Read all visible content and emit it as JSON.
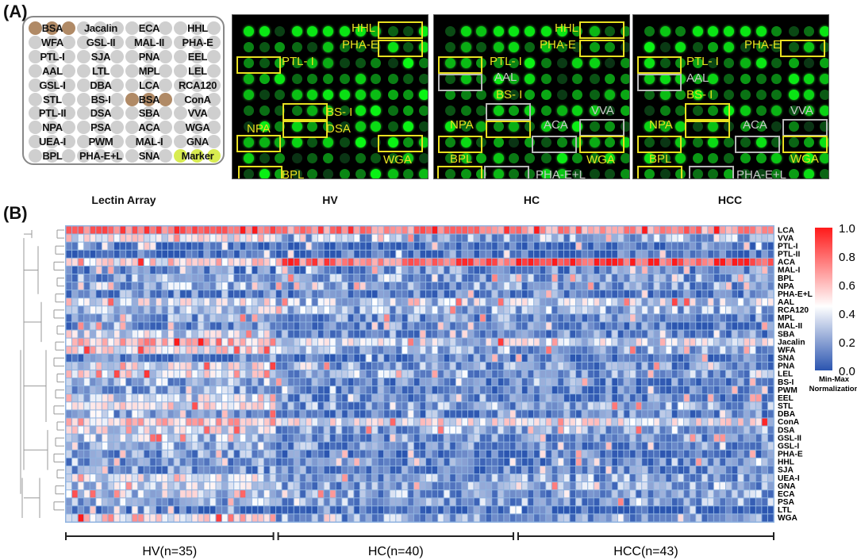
{
  "panel_a": {
    "label": "(A)",
    "lectin_array": {
      "caption": "Lectin Array",
      "grid": [
        [
          "BSA",
          "Jacalin",
          "ECA",
          "HHL"
        ],
        [
          "WFA",
          "GSL-II",
          "MAL-II",
          "PHA-E"
        ],
        [
          "PTL-I",
          "SJA",
          "PNA",
          "EEL"
        ],
        [
          "AAL",
          "LTL",
          "MPL",
          "LEL"
        ],
        [
          "GSL-I",
          "DBA",
          "LCA",
          "RCA120"
        ],
        [
          "STL",
          "BS-I",
          "BSA",
          "ConA"
        ],
        [
          "PTL-II",
          "DSA",
          "SBA",
          "VVA"
        ],
        [
          "NPA",
          "PSA",
          "ACA",
          "WGA"
        ],
        [
          "UEA-I",
          "PWM",
          "MAL-I",
          "GNA"
        ],
        [
          "BPL",
          "PHA-E+L",
          "SNA",
          "Marker"
        ]
      ],
      "special_spots": {
        "BSA": "#b08a66",
        "Marker": "#d8ec50",
        "default": "#cfcfcf"
      }
    },
    "images": [
      {
        "caption": "HV",
        "labels": [
          "HHL",
          "PHA-E",
          "PTL- I",
          "BS- I",
          "NPA",
          "DSA",
          "WGA",
          "BPL"
        ]
      },
      {
        "caption": "HC",
        "labels": [
          "HHL",
          "PHA-E",
          "PTL- I",
          "AAL",
          "BS- I",
          "NPA",
          "ACA",
          "VVA",
          "BPL",
          "WGA",
          "PHA-E+L"
        ]
      },
      {
        "caption": "HCC",
        "labels": [
          "PHA-E",
          "PTL- I",
          "AAL",
          "BS- I",
          "NPA",
          "VVA",
          "ACA",
          "BPL",
          "WGA",
          "PHA-E+L"
        ]
      }
    ]
  },
  "panel_b": {
    "label": "(B)",
    "chart_data": {
      "type": "heatmap",
      "title": "",
      "rows": [
        "LCA",
        "VVA",
        "PTL-I",
        "PTL-II",
        "ACA",
        "MAL-I",
        "BPL",
        "NPA",
        "PHA-E+L",
        "AAL",
        "RCA120",
        "MPL",
        "MAL-II",
        "SBA",
        "Jacalin",
        "WFA",
        "SNA",
        "PNA",
        "LEL",
        "BS-I",
        "PWM",
        "EEL",
        "STL",
        "DBA",
        "ConA",
        "DSA",
        "GSL-II",
        "GSL-I",
        "PHA-E",
        "HHL",
        "SJA",
        "UEA-I",
        "GNA",
        "ECA",
        "PSA",
        "LTL",
        "WGA"
      ],
      "groups": [
        {
          "name": "HV(n=35)",
          "n": 35
        },
        {
          "name": "HC(n=40)",
          "n": 40
        },
        {
          "name": "HCC(n=43)",
          "n": 43
        }
      ],
      "row_group_means": {
        "LCA": [
          0.8,
          0.78,
          0.72
        ],
        "VVA": [
          0.5,
          0.3,
          0.28
        ],
        "PTL-I": [
          0.12,
          0.08,
          0.1
        ],
        "PTL-II": [
          0.14,
          0.1,
          0.11
        ],
        "ACA": [
          0.55,
          0.8,
          0.88
        ],
        "MAL-I": [
          0.18,
          0.2,
          0.18
        ],
        "BPL": [
          0.25,
          0.25,
          0.25
        ],
        "NPA": [
          0.28,
          0.26,
          0.24
        ],
        "PHA-E+L": [
          0.2,
          0.18,
          0.18
        ],
        "AAL": [
          0.45,
          0.35,
          0.38
        ],
        "RCA120": [
          0.35,
          0.28,
          0.3
        ],
        "MPL": [
          0.25,
          0.22,
          0.2
        ],
        "MAL-II": [
          0.22,
          0.2,
          0.18
        ],
        "SBA": [
          0.4,
          0.22,
          0.2
        ],
        "Jacalin": [
          0.62,
          0.4,
          0.42
        ],
        "WFA": [
          0.5,
          0.3,
          0.28
        ],
        "SNA": [
          0.2,
          0.15,
          0.15
        ],
        "PNA": [
          0.45,
          0.25,
          0.22
        ],
        "LEL": [
          0.48,
          0.28,
          0.26
        ],
        "BS-I": [
          0.3,
          0.18,
          0.18
        ],
        "PWM": [
          0.28,
          0.15,
          0.15
        ],
        "EEL": [
          0.4,
          0.22,
          0.2
        ],
        "STL": [
          0.48,
          0.25,
          0.25
        ],
        "DBA": [
          0.3,
          0.2,
          0.2
        ],
        "ConA": [
          0.6,
          0.45,
          0.45
        ],
        "DSA": [
          0.45,
          0.28,
          0.3
        ],
        "GSL-II": [
          0.35,
          0.22,
          0.22
        ],
        "GSL-I": [
          0.3,
          0.22,
          0.22
        ],
        "PHA-E": [
          0.25,
          0.15,
          0.17
        ],
        "HHL": [
          0.25,
          0.18,
          0.18
        ],
        "SJA": [
          0.22,
          0.18,
          0.18
        ],
        "UEA-I": [
          0.42,
          0.25,
          0.25
        ],
        "GNA": [
          0.4,
          0.25,
          0.26
        ],
        "ECA": [
          0.38,
          0.26,
          0.26
        ],
        "PSA": [
          0.3,
          0.25,
          0.24
        ],
        "LTL": [
          0.1,
          0.08,
          0.08
        ],
        "WGA": [
          0.55,
          0.25,
          0.22
        ]
      },
      "colorbar": {
        "min": 0.0,
        "max": 1.0,
        "ticks": [
          "1.0",
          "0.8",
          "0.6",
          "0.4",
          "0.2",
          "0.0"
        ],
        "colors": {
          "low": "#2b55b0",
          "mid": "#ffffff",
          "high": "#ff1a1a"
        },
        "title_line1": "Min-Max",
        "title_line2": "Normalization"
      },
      "dendrogram": "row clustering (left)",
      "note": "Cell values approximated from the figure's color pattern"
    }
  }
}
